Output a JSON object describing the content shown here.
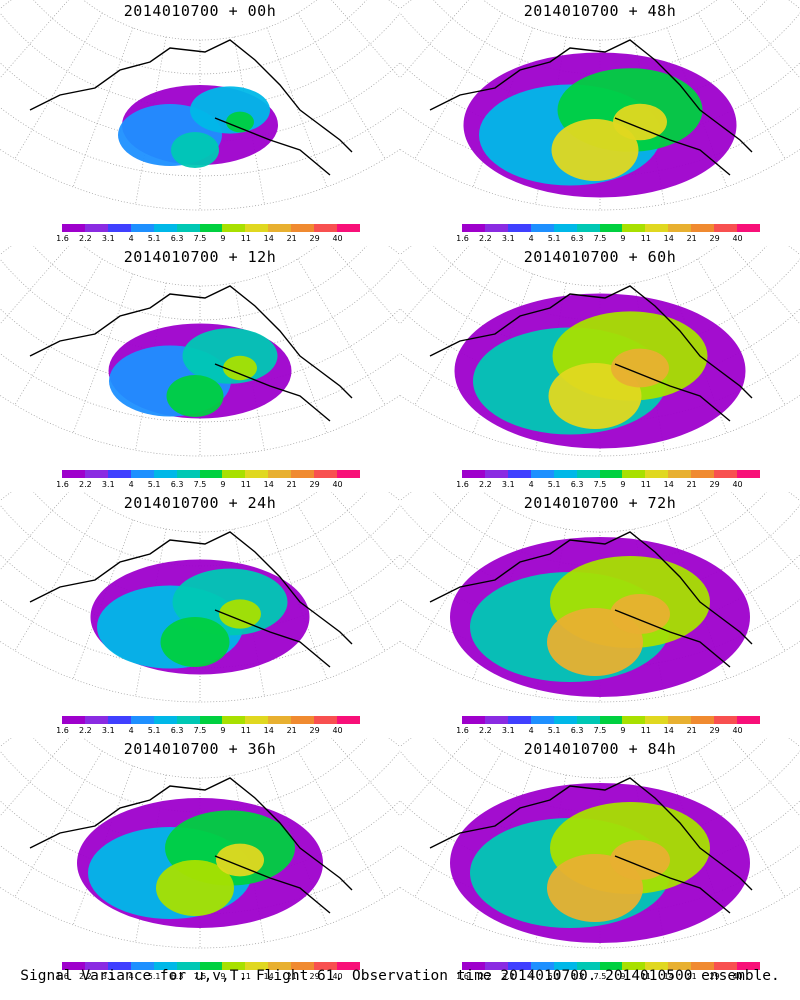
{
  "panels": [
    {
      "title": "2014010700 + 00h",
      "spread": 0.2,
      "peak": 0.15
    },
    {
      "title": "2014010700 + 48h",
      "spread": 0.85,
      "peak": 0.6
    },
    {
      "title": "2014010700 + 12h",
      "spread": 0.35,
      "peak": 0.3
    },
    {
      "title": "2014010700 + 60h",
      "spread": 0.95,
      "peak": 0.7
    },
    {
      "title": "2014010700 + 24h",
      "spread": 0.55,
      "peak": 0.4
    },
    {
      "title": "2014010700 + 72h",
      "spread": 1.0,
      "peak": 0.75
    },
    {
      "title": "2014010700 + 36h",
      "spread": 0.7,
      "peak": 0.55
    },
    {
      "title": "2014010700 + 84h",
      "spread": 1.0,
      "peak": 0.8
    }
  ],
  "colorbar": {
    "labels": [
      "1.6",
      "2.2",
      "3.1",
      "4",
      "5.1",
      "6.3",
      "7.5",
      "9",
      "11",
      "14",
      "21",
      "29",
      "40"
    ],
    "colors": [
      "#9e00cc",
      "#8a2be2",
      "#4040ff",
      "#1e90ff",
      "#00b8e8",
      "#00c8b4",
      "#00d040",
      "#a8e000",
      "#e0d820",
      "#e8b030",
      "#f08a30",
      "#f85050",
      "#f81078"
    ]
  },
  "footer": "Signal Variance for u,v,T. Flight 61. Observation time 2014010700. 2014010500 ensemble."
}
